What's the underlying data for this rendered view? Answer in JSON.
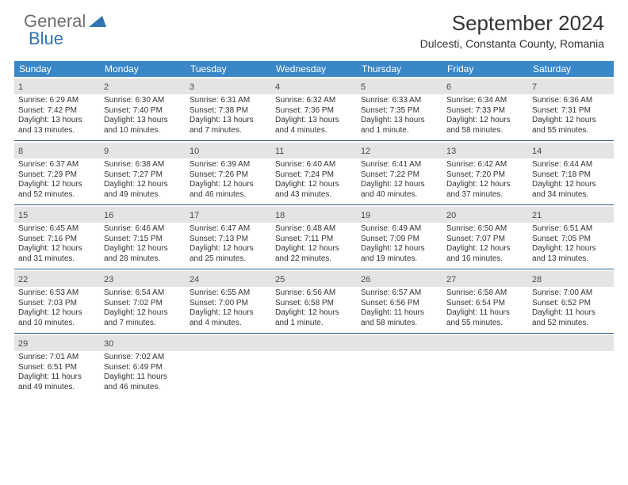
{
  "logo": {
    "text1": "General",
    "text2": "Blue"
  },
  "title": "September 2024",
  "location": "Dulcesti, Constanta County, Romania",
  "colors": {
    "header_bg": "#3a87c8",
    "header_text": "#ffffff",
    "daynum_bg": "#e4e4e4",
    "week_border": "#2f5d8a",
    "text": "#333333",
    "logo_gray": "#6e6e6e",
    "logo_blue": "#2f73b4"
  },
  "daynames": [
    "Sunday",
    "Monday",
    "Tuesday",
    "Wednesday",
    "Thursday",
    "Friday",
    "Saturday"
  ],
  "weeks": [
    [
      {
        "n": "1",
        "sr": "Sunrise: 6:29 AM",
        "ss": "Sunset: 7:42 PM",
        "d1": "Daylight: 13 hours",
        "d2": "and 13 minutes."
      },
      {
        "n": "2",
        "sr": "Sunrise: 6:30 AM",
        "ss": "Sunset: 7:40 PM",
        "d1": "Daylight: 13 hours",
        "d2": "and 10 minutes."
      },
      {
        "n": "3",
        "sr": "Sunrise: 6:31 AM",
        "ss": "Sunset: 7:38 PM",
        "d1": "Daylight: 13 hours",
        "d2": "and 7 minutes."
      },
      {
        "n": "4",
        "sr": "Sunrise: 6:32 AM",
        "ss": "Sunset: 7:36 PM",
        "d1": "Daylight: 13 hours",
        "d2": "and 4 minutes."
      },
      {
        "n": "5",
        "sr": "Sunrise: 6:33 AM",
        "ss": "Sunset: 7:35 PM",
        "d1": "Daylight: 13 hours",
        "d2": "and 1 minute."
      },
      {
        "n": "6",
        "sr": "Sunrise: 6:34 AM",
        "ss": "Sunset: 7:33 PM",
        "d1": "Daylight: 12 hours",
        "d2": "and 58 minutes."
      },
      {
        "n": "7",
        "sr": "Sunrise: 6:36 AM",
        "ss": "Sunset: 7:31 PM",
        "d1": "Daylight: 12 hours",
        "d2": "and 55 minutes."
      }
    ],
    [
      {
        "n": "8",
        "sr": "Sunrise: 6:37 AM",
        "ss": "Sunset: 7:29 PM",
        "d1": "Daylight: 12 hours",
        "d2": "and 52 minutes."
      },
      {
        "n": "9",
        "sr": "Sunrise: 6:38 AM",
        "ss": "Sunset: 7:27 PM",
        "d1": "Daylight: 12 hours",
        "d2": "and 49 minutes."
      },
      {
        "n": "10",
        "sr": "Sunrise: 6:39 AM",
        "ss": "Sunset: 7:26 PM",
        "d1": "Daylight: 12 hours",
        "d2": "and 46 minutes."
      },
      {
        "n": "11",
        "sr": "Sunrise: 6:40 AM",
        "ss": "Sunset: 7:24 PM",
        "d1": "Daylight: 12 hours",
        "d2": "and 43 minutes."
      },
      {
        "n": "12",
        "sr": "Sunrise: 6:41 AM",
        "ss": "Sunset: 7:22 PM",
        "d1": "Daylight: 12 hours",
        "d2": "and 40 minutes."
      },
      {
        "n": "13",
        "sr": "Sunrise: 6:42 AM",
        "ss": "Sunset: 7:20 PM",
        "d1": "Daylight: 12 hours",
        "d2": "and 37 minutes."
      },
      {
        "n": "14",
        "sr": "Sunrise: 6:44 AM",
        "ss": "Sunset: 7:18 PM",
        "d1": "Daylight: 12 hours",
        "d2": "and 34 minutes."
      }
    ],
    [
      {
        "n": "15",
        "sr": "Sunrise: 6:45 AM",
        "ss": "Sunset: 7:16 PM",
        "d1": "Daylight: 12 hours",
        "d2": "and 31 minutes."
      },
      {
        "n": "16",
        "sr": "Sunrise: 6:46 AM",
        "ss": "Sunset: 7:15 PM",
        "d1": "Daylight: 12 hours",
        "d2": "and 28 minutes."
      },
      {
        "n": "17",
        "sr": "Sunrise: 6:47 AM",
        "ss": "Sunset: 7:13 PM",
        "d1": "Daylight: 12 hours",
        "d2": "and 25 minutes."
      },
      {
        "n": "18",
        "sr": "Sunrise: 6:48 AM",
        "ss": "Sunset: 7:11 PM",
        "d1": "Daylight: 12 hours",
        "d2": "and 22 minutes."
      },
      {
        "n": "19",
        "sr": "Sunrise: 6:49 AM",
        "ss": "Sunset: 7:09 PM",
        "d1": "Daylight: 12 hours",
        "d2": "and 19 minutes."
      },
      {
        "n": "20",
        "sr": "Sunrise: 6:50 AM",
        "ss": "Sunset: 7:07 PM",
        "d1": "Daylight: 12 hours",
        "d2": "and 16 minutes."
      },
      {
        "n": "21",
        "sr": "Sunrise: 6:51 AM",
        "ss": "Sunset: 7:05 PM",
        "d1": "Daylight: 12 hours",
        "d2": "and 13 minutes."
      }
    ],
    [
      {
        "n": "22",
        "sr": "Sunrise: 6:53 AM",
        "ss": "Sunset: 7:03 PM",
        "d1": "Daylight: 12 hours",
        "d2": "and 10 minutes."
      },
      {
        "n": "23",
        "sr": "Sunrise: 6:54 AM",
        "ss": "Sunset: 7:02 PM",
        "d1": "Daylight: 12 hours",
        "d2": "and 7 minutes."
      },
      {
        "n": "24",
        "sr": "Sunrise: 6:55 AM",
        "ss": "Sunset: 7:00 PM",
        "d1": "Daylight: 12 hours",
        "d2": "and 4 minutes."
      },
      {
        "n": "25",
        "sr": "Sunrise: 6:56 AM",
        "ss": "Sunset: 6:58 PM",
        "d1": "Daylight: 12 hours",
        "d2": "and 1 minute."
      },
      {
        "n": "26",
        "sr": "Sunrise: 6:57 AM",
        "ss": "Sunset: 6:56 PM",
        "d1": "Daylight: 11 hours",
        "d2": "and 58 minutes."
      },
      {
        "n": "27",
        "sr": "Sunrise: 6:58 AM",
        "ss": "Sunset: 6:54 PM",
        "d1": "Daylight: 11 hours",
        "d2": "and 55 minutes."
      },
      {
        "n": "28",
        "sr": "Sunrise: 7:00 AM",
        "ss": "Sunset: 6:52 PM",
        "d1": "Daylight: 11 hours",
        "d2": "and 52 minutes."
      }
    ],
    [
      {
        "n": "29",
        "sr": "Sunrise: 7:01 AM",
        "ss": "Sunset: 6:51 PM",
        "d1": "Daylight: 11 hours",
        "d2": "and 49 minutes."
      },
      {
        "n": "30",
        "sr": "Sunrise: 7:02 AM",
        "ss": "Sunset: 6:49 PM",
        "d1": "Daylight: 11 hours",
        "d2": "and 46 minutes."
      },
      {
        "n": "",
        "sr": "",
        "ss": "",
        "d1": "",
        "d2": ""
      },
      {
        "n": "",
        "sr": "",
        "ss": "",
        "d1": "",
        "d2": ""
      },
      {
        "n": "",
        "sr": "",
        "ss": "",
        "d1": "",
        "d2": ""
      },
      {
        "n": "",
        "sr": "",
        "ss": "",
        "d1": "",
        "d2": ""
      },
      {
        "n": "",
        "sr": "",
        "ss": "",
        "d1": "",
        "d2": ""
      }
    ]
  ]
}
